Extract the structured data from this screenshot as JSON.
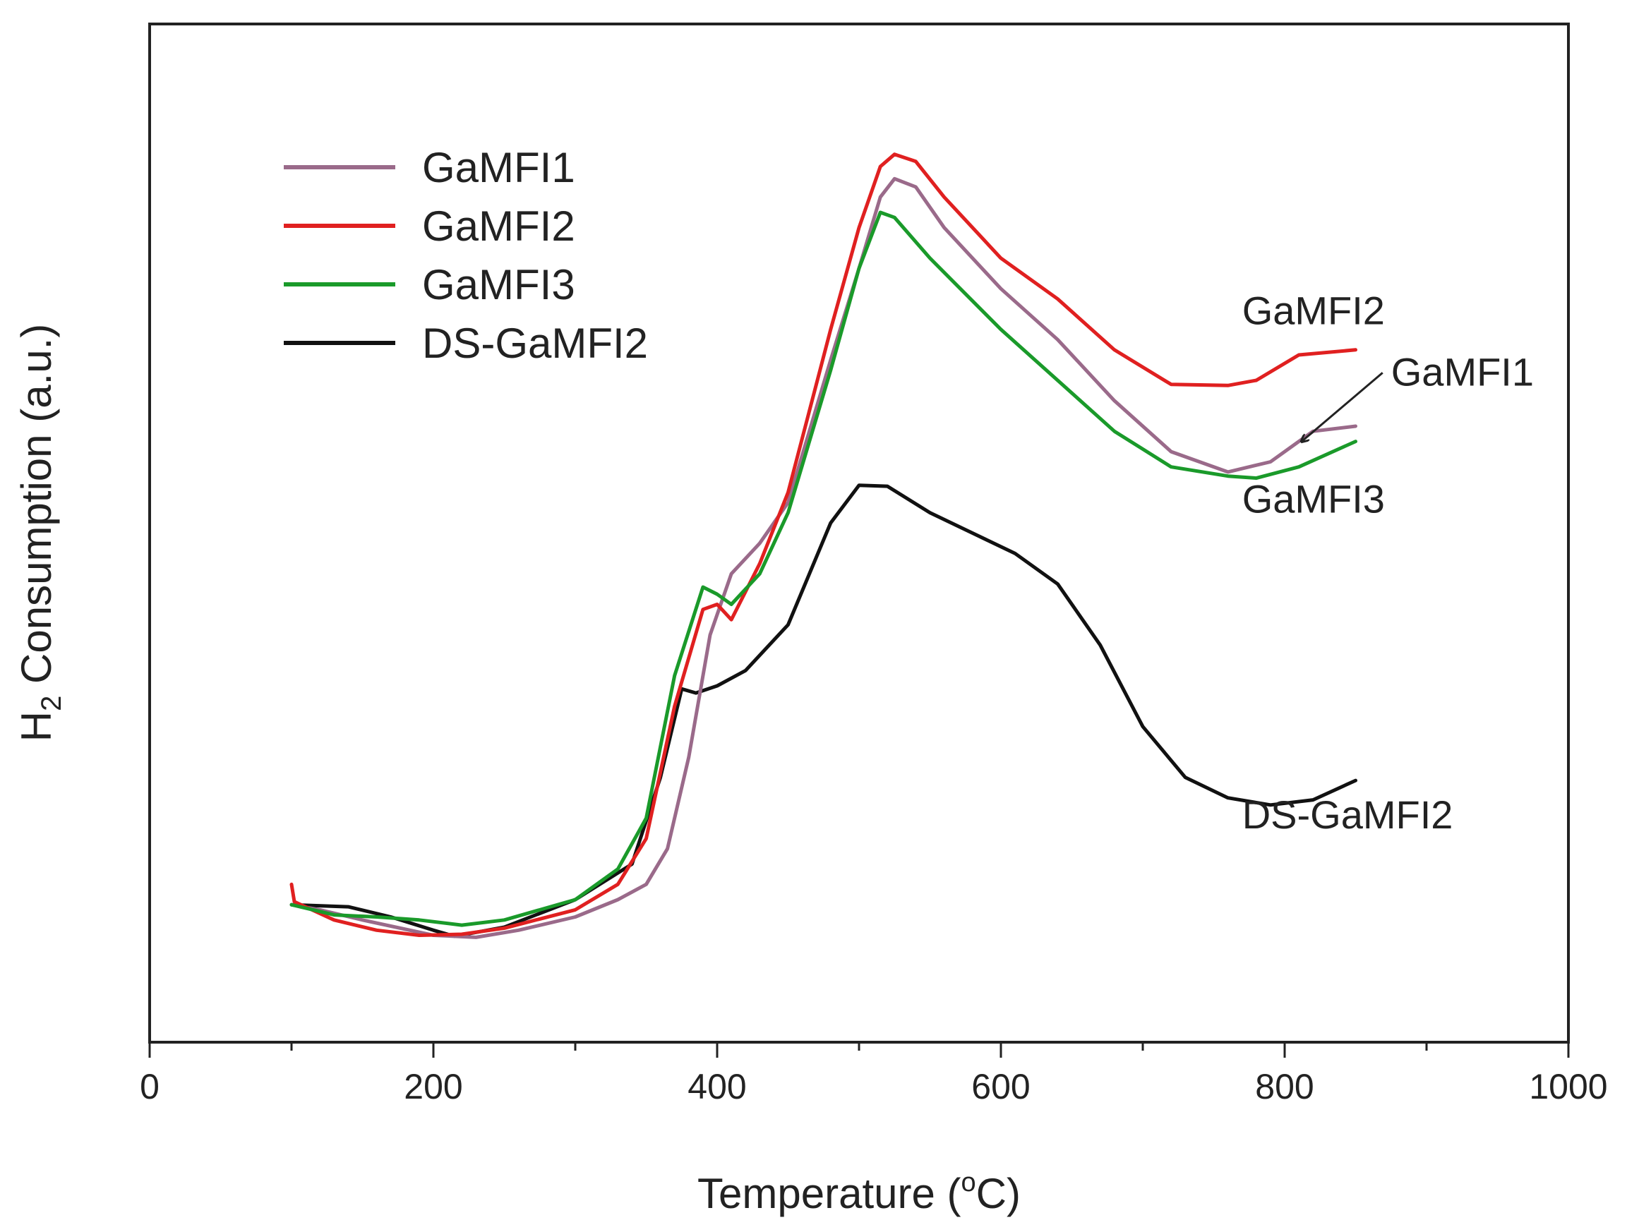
{
  "chart_data": {
    "type": "line",
    "title": "",
    "xlabel": {
      "main": "Temperature (",
      "sup": "o",
      "unit": "C)"
    },
    "ylabel": {
      "main": "H",
      "sub": "2",
      "rest": " Consumption (a.u.)"
    },
    "xlim": [
      0,
      1000
    ],
    "ylim": [
      0,
      100
    ],
    "x_ticks": [
      0,
      200,
      400,
      600,
      800,
      1000
    ],
    "x_minor_ticks": [
      100,
      300,
      500,
      700,
      900
    ],
    "y_ticks_shown": false,
    "legend_position": "top-left",
    "series": [
      {
        "name": "GaMFI1",
        "color": "#9a6a8a",
        "points": [
          [
            100,
            13.5
          ],
          [
            120,
            13
          ],
          [
            150,
            12
          ],
          [
            200,
            10.5
          ],
          [
            230,
            10.3
          ],
          [
            260,
            11
          ],
          [
            300,
            12.3
          ],
          [
            330,
            14
          ],
          [
            350,
            15.5
          ],
          [
            365,
            19
          ],
          [
            380,
            28
          ],
          [
            395,
            40
          ],
          [
            410,
            46
          ],
          [
            430,
            49
          ],
          [
            450,
            53
          ],
          [
            480,
            67
          ],
          [
            500,
            76
          ],
          [
            515,
            83
          ],
          [
            525,
            84.8
          ],
          [
            540,
            84
          ],
          [
            560,
            80
          ],
          [
            600,
            74
          ],
          [
            640,
            69
          ],
          [
            680,
            63
          ],
          [
            720,
            58
          ],
          [
            760,
            56
          ],
          [
            790,
            57
          ],
          [
            820,
            60
          ],
          [
            850,
            60.5
          ]
        ]
      },
      {
        "name": "GaMFI2",
        "color": "#e02020",
        "points": [
          [
            100,
            15.5
          ],
          [
            102,
            13.8
          ],
          [
            130,
            12
          ],
          [
            160,
            11
          ],
          [
            190,
            10.5
          ],
          [
            220,
            10.6
          ],
          [
            250,
            11.2
          ],
          [
            300,
            13
          ],
          [
            330,
            15.5
          ],
          [
            350,
            20
          ],
          [
            370,
            33
          ],
          [
            390,
            42.5
          ],
          [
            400,
            43
          ],
          [
            410,
            41.5
          ],
          [
            430,
            47
          ],
          [
            450,
            54
          ],
          [
            480,
            70
          ],
          [
            500,
            80
          ],
          [
            515,
            86
          ],
          [
            525,
            87.2
          ],
          [
            540,
            86.5
          ],
          [
            560,
            83
          ],
          [
            600,
            77
          ],
          [
            640,
            73
          ],
          [
            680,
            68
          ],
          [
            720,
            64.6
          ],
          [
            760,
            64.5
          ],
          [
            780,
            65
          ],
          [
            810,
            67.5
          ],
          [
            850,
            68
          ]
        ]
      },
      {
        "name": "GaMFI3",
        "color": "#1a9a2a",
        "points": [
          [
            100,
            13.5
          ],
          [
            130,
            12.5
          ],
          [
            160,
            12.3
          ],
          [
            190,
            12
          ],
          [
            220,
            11.5
          ],
          [
            250,
            12
          ],
          [
            300,
            14
          ],
          [
            330,
            17
          ],
          [
            350,
            22
          ],
          [
            370,
            36
          ],
          [
            390,
            44.7
          ],
          [
            400,
            44
          ],
          [
            410,
            43
          ],
          [
            430,
            46
          ],
          [
            450,
            52
          ],
          [
            480,
            66
          ],
          [
            500,
            76
          ],
          [
            515,
            81.5
          ],
          [
            525,
            81
          ],
          [
            550,
            77
          ],
          [
            600,
            70
          ],
          [
            640,
            65
          ],
          [
            680,
            60
          ],
          [
            720,
            56.5
          ],
          [
            760,
            55.6
          ],
          [
            780,
            55.4
          ],
          [
            810,
            56.5
          ],
          [
            850,
            59
          ]
        ]
      },
      {
        "name": "DS-GaMFI2",
        "color": "#111111",
        "points": [
          [
            100,
            13.5
          ],
          [
            140,
            13.3
          ],
          [
            170,
            12.3
          ],
          [
            200,
            11
          ],
          [
            215,
            10.4
          ],
          [
            250,
            11.3
          ],
          [
            300,
            14
          ],
          [
            340,
            17.5
          ],
          [
            360,
            26
          ],
          [
            375,
            34.7
          ],
          [
            385,
            34.3
          ],
          [
            400,
            35
          ],
          [
            420,
            36.5
          ],
          [
            450,
            41
          ],
          [
            480,
            51
          ],
          [
            500,
            54.7
          ],
          [
            520,
            54.6
          ],
          [
            550,
            52
          ],
          [
            580,
            50
          ],
          [
            610,
            48
          ],
          [
            640,
            45
          ],
          [
            670,
            39
          ],
          [
            700,
            31
          ],
          [
            730,
            26
          ],
          [
            760,
            24
          ],
          [
            790,
            23.3
          ],
          [
            820,
            23.8
          ],
          [
            850,
            25.7
          ]
        ]
      }
    ],
    "annotations": [
      {
        "text": "GaMFI2",
        "series": "GaMFI2",
        "at": [
          770,
          70.5
        ]
      },
      {
        "text": "GaMFI1",
        "series": "GaMFI1",
        "at": [
          875,
          64.5
        ],
        "arrow_to": [
          812,
          59
        ]
      },
      {
        "text": "GaMFI3",
        "series": "GaMFI3",
        "at": [
          770,
          52
        ]
      },
      {
        "text": "DS-GaMFI2",
        "series": "DS-GaMFI2",
        "at": [
          770,
          21
        ]
      }
    ]
  }
}
